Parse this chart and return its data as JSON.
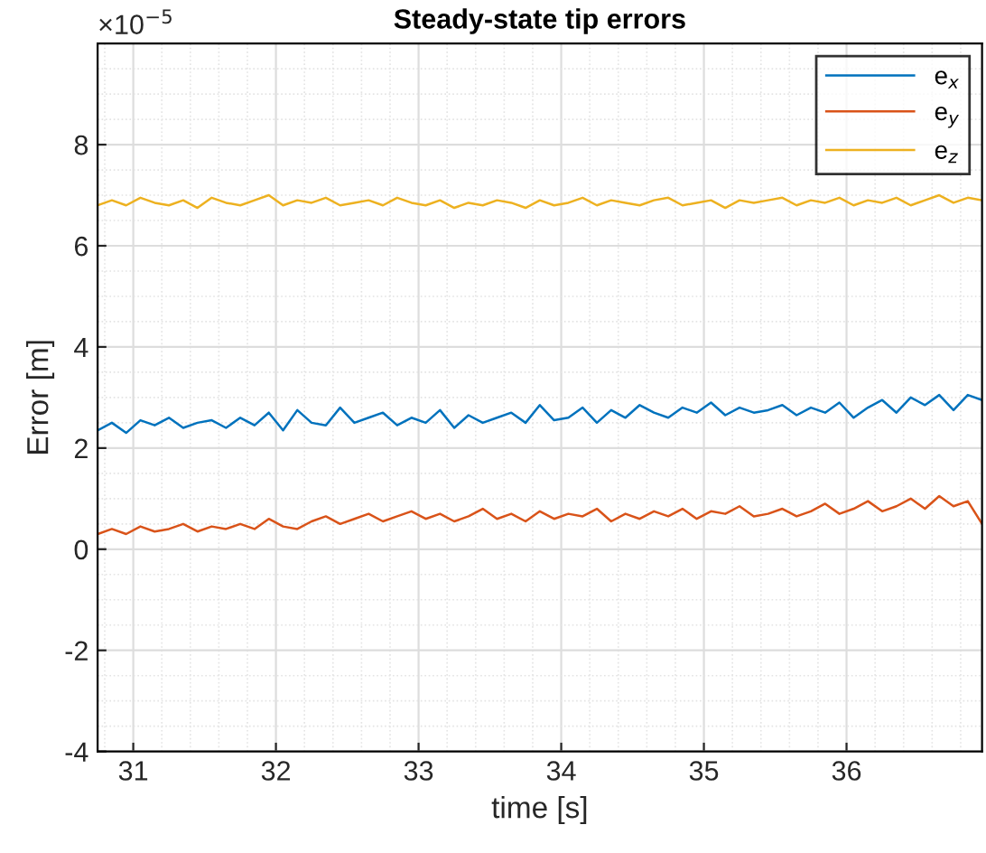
{
  "chart_data": {
    "type": "line",
    "title": "Steady-state tip errors",
    "xlabel": "time [s]",
    "ylabel": "Error [m]",
    "annotations": [
      "×10$^{−5}$"
    ],
    "x": [
      30.75,
      30.85,
      30.95,
      31.05,
      31.15,
      31.25,
      31.35,
      31.45,
      31.55,
      31.65,
      31.75,
      31.85,
      31.95,
      32.05,
      32.15,
      32.25,
      32.35,
      32.45,
      32.55,
      32.65,
      32.75,
      32.85,
      32.95,
      33.05,
      33.15,
      33.25,
      33.35,
      33.45,
      33.55,
      33.65,
      33.75,
      33.85,
      33.95,
      34.05,
      34.15,
      34.25,
      34.35,
      34.45,
      34.55,
      34.65,
      34.75,
      34.85,
      34.95,
      35.05,
      35.15,
      35.25,
      35.35,
      35.45,
      35.55,
      35.65,
      35.75,
      35.85,
      35.95,
      36.05,
      36.15,
      36.25,
      36.35,
      36.45,
      36.55,
      36.65,
      36.75,
      36.85,
      36.95
    ],
    "series": [
      {
        "name": "e$_{x}$",
        "color": "#0072bd",
        "values": [
          2.35,
          2.5,
          2.3,
          2.55,
          2.45,
          2.6,
          2.4,
          2.5,
          2.55,
          2.4,
          2.6,
          2.45,
          2.7,
          2.35,
          2.75,
          2.5,
          2.45,
          2.8,
          2.5,
          2.6,
          2.7,
          2.45,
          2.6,
          2.5,
          2.75,
          2.4,
          2.65,
          2.5,
          2.6,
          2.7,
          2.5,
          2.85,
          2.55,
          2.6,
          2.8,
          2.5,
          2.75,
          2.6,
          2.85,
          2.7,
          2.6,
          2.8,
          2.7,
          2.9,
          2.65,
          2.8,
          2.7,
          2.75,
          2.85,
          2.65,
          2.8,
          2.7,
          2.9,
          2.6,
          2.8,
          2.95,
          2.7,
          3.0,
          2.85,
          3.05,
          2.75,
          3.05,
          2.95
        ]
      },
      {
        "name": "e$_{y}$",
        "color": "#d95319",
        "values": [
          0.3,
          0.4,
          0.3,
          0.45,
          0.35,
          0.4,
          0.5,
          0.35,
          0.45,
          0.4,
          0.5,
          0.4,
          0.6,
          0.45,
          0.4,
          0.55,
          0.65,
          0.5,
          0.6,
          0.7,
          0.55,
          0.65,
          0.75,
          0.6,
          0.7,
          0.55,
          0.65,
          0.8,
          0.6,
          0.7,
          0.55,
          0.75,
          0.6,
          0.7,
          0.65,
          0.8,
          0.55,
          0.7,
          0.6,
          0.75,
          0.65,
          0.8,
          0.6,
          0.75,
          0.7,
          0.85,
          0.65,
          0.7,
          0.8,
          0.65,
          0.75,
          0.9,
          0.7,
          0.8,
          0.95,
          0.75,
          0.85,
          1.0,
          0.8,
          1.05,
          0.85,
          0.95,
          0.5
        ]
      },
      {
        "name": "e$_{z}$",
        "color": "#edb120",
        "values": [
          6.8,
          6.9,
          6.8,
          6.95,
          6.85,
          6.8,
          6.9,
          6.75,
          6.95,
          6.85,
          6.8,
          6.9,
          7.0,
          6.8,
          6.9,
          6.85,
          6.95,
          6.8,
          6.85,
          6.9,
          6.8,
          6.95,
          6.85,
          6.8,
          6.9,
          6.75,
          6.85,
          6.8,
          6.9,
          6.85,
          6.75,
          6.9,
          6.8,
          6.85,
          6.95,
          6.8,
          6.9,
          6.85,
          6.8,
          6.9,
          6.95,
          6.8,
          6.85,
          6.9,
          6.75,
          6.9,
          6.85,
          6.9,
          6.95,
          6.8,
          6.9,
          6.85,
          6.95,
          6.8,
          6.9,
          6.85,
          6.95,
          6.8,
          6.9,
          7.0,
          6.85,
          6.95,
          6.9
        ]
      }
    ],
    "xlim": [
      30.75,
      36.95
    ],
    "xticks": [
      31,
      32,
      33,
      34,
      35,
      36
    ],
    "ylim": [
      -4,
      10
    ],
    "yticks": [
      -4,
      -2,
      0,
      2,
      4,
      6,
      8
    ],
    "grid": true,
    "legend": "top right",
    "line_style": "solid",
    "marker": "none"
  }
}
